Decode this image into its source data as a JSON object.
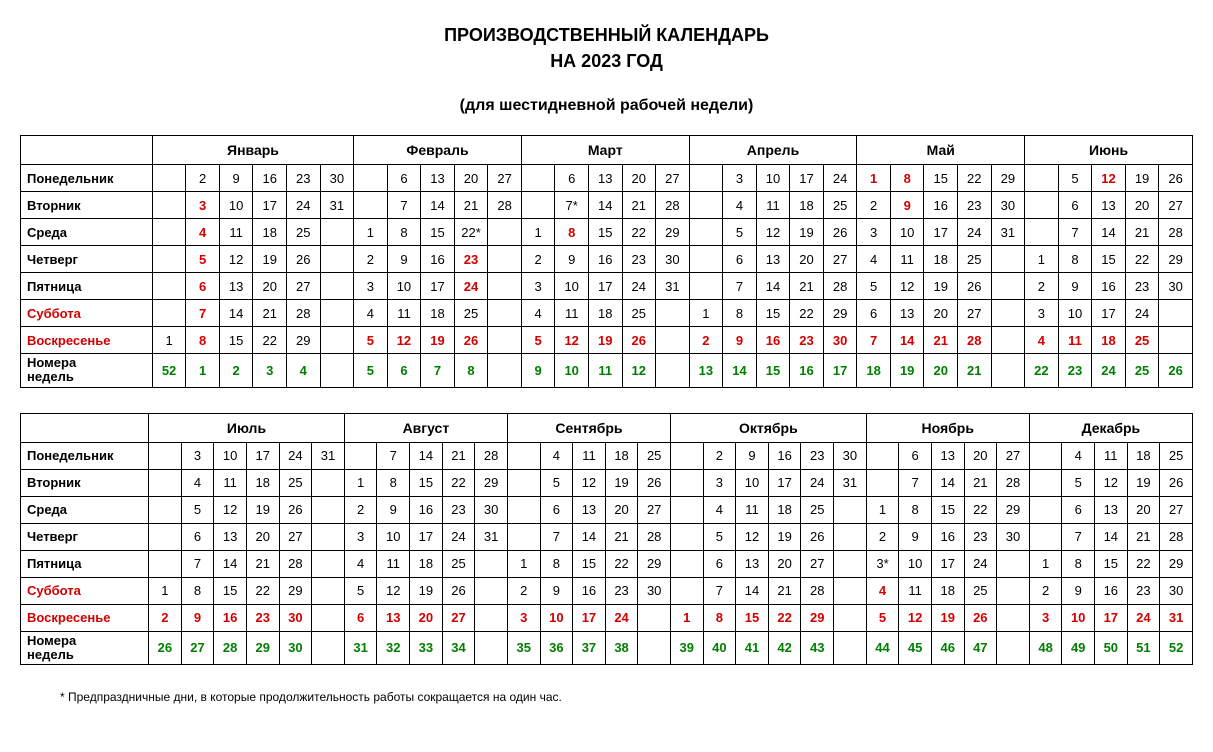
{
  "title1": "ПРОИЗВОДСТВЕННЫЙ КАЛЕНДАРЬ",
  "title2": "НА 2023 ГОД",
  "subtitle": "(для шестидневной рабочей недели)",
  "footnote": "* Предпраздничные дни, в которые продолжительность работы сокращается на один час.",
  "row_labels": [
    "Понедельник",
    "Вторник",
    "Среда",
    "Четверг",
    "Пятница",
    "Суббота",
    "Воскресенье"
  ],
  "weeks_label": "Номера недель",
  "red_rows": [
    5,
    6
  ],
  "half1": {
    "months": [
      {
        "name": "Январь",
        "cols": 6,
        "weeks": [
          "52",
          "1",
          "2",
          "3",
          "4",
          ""
        ],
        "days": [
          [
            "",
            "2",
            "9",
            "16",
            "23",
            "30"
          ],
          [
            "",
            "3",
            "10",
            "17",
            "24",
            "31"
          ],
          [
            "",
            "4",
            "11",
            "18",
            "25",
            ""
          ],
          [
            "",
            "5",
            "12",
            "19",
            "26",
            ""
          ],
          [
            "",
            "6",
            "13",
            "20",
            "27",
            ""
          ],
          [
            "",
            "7",
            "14",
            "21",
            "28",
            ""
          ],
          [
            "1",
            "8",
            "15",
            "22",
            "29",
            ""
          ]
        ],
        "red": [
          [],
          [
            1
          ],
          [
            1
          ],
          [
            1
          ],
          [
            1
          ],
          [
            1
          ],
          [
            1
          ],
          [
            0,
            1,
            2,
            3,
            4
          ]
        ]
      },
      {
        "name": "Февраль",
        "cols": 5,
        "weeks": [
          "5",
          "6",
          "7",
          "8",
          ""
        ],
        "days": [
          [
            "",
            "6",
            "13",
            "20",
            "27"
          ],
          [
            "",
            "7",
            "14",
            "21",
            "28"
          ],
          [
            "1",
            "8",
            "15",
            "22*",
            ""
          ],
          [
            "2",
            "9",
            "16",
            "23",
            ""
          ],
          [
            "3",
            "10",
            "17",
            "24",
            ""
          ],
          [
            "4",
            "11",
            "18",
            "25",
            ""
          ],
          [
            "5",
            "12",
            "19",
            "26",
            ""
          ]
        ],
        "red": [
          [],
          [],
          [],
          [
            3
          ],
          [
            3
          ],
          [],
          [
            0,
            1,
            2,
            3
          ]
        ]
      },
      {
        "name": "Март",
        "cols": 5,
        "weeks": [
          "9",
          "10",
          "11",
          "12",
          ""
        ],
        "days": [
          [
            "",
            "6",
            "13",
            "20",
            "27"
          ],
          [
            "",
            "7*",
            "14",
            "21",
            "28"
          ],
          [
            "1",
            "8",
            "15",
            "22",
            "29"
          ],
          [
            "2",
            "9",
            "16",
            "23",
            "30"
          ],
          [
            "3",
            "10",
            "17",
            "24",
            "31"
          ],
          [
            "4",
            "11",
            "18",
            "25",
            ""
          ],
          [
            "5",
            "12",
            "19",
            "26",
            ""
          ]
        ],
        "red": [
          [],
          [],
          [
            1
          ],
          [],
          [],
          [],
          [
            0,
            1,
            2,
            3
          ]
        ]
      },
      {
        "name": "Апрель",
        "cols": 5,
        "weeks": [
          "13",
          "14",
          "15",
          "16",
          "17"
        ],
        "days": [
          [
            "",
            "3",
            "10",
            "17",
            "24"
          ],
          [
            "",
            "4",
            "11",
            "18",
            "25"
          ],
          [
            "",
            "5",
            "12",
            "19",
            "26"
          ],
          [
            "",
            "6",
            "13",
            "20",
            "27"
          ],
          [
            "",
            "7",
            "14",
            "21",
            "28"
          ],
          [
            "1",
            "8",
            "15",
            "22",
            "29"
          ],
          [
            "2",
            "9",
            "16",
            "23",
            "30"
          ]
        ],
        "red": [
          [],
          [],
          [],
          [],
          [],
          [],
          [
            0,
            1,
            2,
            3,
            4
          ]
        ]
      },
      {
        "name": "Май",
        "cols": 5,
        "weeks": [
          "18",
          "19",
          "20",
          "21",
          ""
        ],
        "days": [
          [
            "1",
            "8",
            "15",
            "22",
            "29"
          ],
          [
            "2",
            "9",
            "16",
            "23",
            "30"
          ],
          [
            "3",
            "10",
            "17",
            "24",
            "31"
          ],
          [
            "4",
            "11",
            "18",
            "25",
            ""
          ],
          [
            "5",
            "12",
            "19",
            "26",
            ""
          ],
          [
            "6",
            "13",
            "20",
            "27",
            ""
          ],
          [
            "7",
            "14",
            "21",
            "28",
            ""
          ]
        ],
        "red": [
          [
            0,
            1
          ],
          [
            1
          ],
          [],
          [],
          [],
          [],
          [
            0,
            1,
            2,
            3
          ]
        ]
      },
      {
        "name": "Июнь",
        "cols": 5,
        "weeks": [
          "22",
          "23",
          "24",
          "25",
          "26"
        ],
        "days": [
          [
            "",
            "5",
            "12",
            "19",
            "26"
          ],
          [
            "",
            "6",
            "13",
            "20",
            "27"
          ],
          [
            "",
            "7",
            "14",
            "21",
            "28"
          ],
          [
            "1",
            "8",
            "15",
            "22",
            "29"
          ],
          [
            "2",
            "9",
            "16",
            "23",
            "30"
          ],
          [
            "3",
            "10",
            "17",
            "24",
            ""
          ],
          [
            "4",
            "11",
            "18",
            "25",
            ""
          ]
        ],
        "red": [
          [
            2
          ],
          [],
          [],
          [],
          [],
          [],
          [
            0,
            1,
            2,
            3
          ]
        ]
      }
    ]
  },
  "half2": {
    "months": [
      {
        "name": "Июль",
        "cols": 6,
        "weeks": [
          "26",
          "27",
          "28",
          "29",
          "30",
          ""
        ],
        "days": [
          [
            "",
            "3",
            "10",
            "17",
            "24",
            "31"
          ],
          [
            "",
            "4",
            "11",
            "18",
            "25",
            ""
          ],
          [
            "",
            "5",
            "12",
            "19",
            "26",
            ""
          ],
          [
            "",
            "6",
            "13",
            "20",
            "27",
            ""
          ],
          [
            "",
            "7",
            "14",
            "21",
            "28",
            ""
          ],
          [
            "1",
            "8",
            "15",
            "22",
            "29",
            ""
          ],
          [
            "2",
            "9",
            "16",
            "23",
            "30",
            ""
          ]
        ],
        "red": [
          [],
          [],
          [],
          [],
          [],
          [],
          [
            0,
            1,
            2,
            3,
            4
          ]
        ]
      },
      {
        "name": "Август",
        "cols": 5,
        "weeks": [
          "31",
          "32",
          "33",
          "34",
          ""
        ],
        "days": [
          [
            "",
            "7",
            "14",
            "21",
            "28"
          ],
          [
            "1",
            "8",
            "15",
            "22",
            "29"
          ],
          [
            "2",
            "9",
            "16",
            "23",
            "30"
          ],
          [
            "3",
            "10",
            "17",
            "24",
            "31"
          ],
          [
            "4",
            "11",
            "18",
            "25",
            ""
          ],
          [
            "5",
            "12",
            "19",
            "26",
            ""
          ],
          [
            "6",
            "13",
            "20",
            "27",
            ""
          ]
        ],
        "red": [
          [],
          [],
          [],
          [],
          [],
          [],
          [
            0,
            1,
            2,
            3
          ]
        ]
      },
      {
        "name": "Сентябрь",
        "cols": 5,
        "weeks": [
          "35",
          "36",
          "37",
          "38",
          ""
        ],
        "days": [
          [
            "",
            "4",
            "11",
            "18",
            "25"
          ],
          [
            "",
            "5",
            "12",
            "19",
            "26"
          ],
          [
            "",
            "6",
            "13",
            "20",
            "27"
          ],
          [
            "",
            "7",
            "14",
            "21",
            "28"
          ],
          [
            "1",
            "8",
            "15",
            "22",
            "29"
          ],
          [
            "2",
            "9",
            "16",
            "23",
            "30"
          ],
          [
            "3",
            "10",
            "17",
            "24",
            ""
          ]
        ],
        "red": [
          [],
          [],
          [],
          [],
          [],
          [],
          [
            0,
            1,
            2,
            3
          ]
        ]
      },
      {
        "name": "Октябрь",
        "cols": 6,
        "weeks": [
          "39",
          "40",
          "41",
          "42",
          "43",
          ""
        ],
        "days": [
          [
            "",
            "2",
            "9",
            "16",
            "23",
            "30"
          ],
          [
            "",
            "3",
            "10",
            "17",
            "24",
            "31"
          ],
          [
            "",
            "4",
            "11",
            "18",
            "25",
            ""
          ],
          [
            "",
            "5",
            "12",
            "19",
            "26",
            ""
          ],
          [
            "",
            "6",
            "13",
            "20",
            "27",
            ""
          ],
          [
            "",
            "7",
            "14",
            "21",
            "28",
            ""
          ],
          [
            "1",
            "8",
            "15",
            "22",
            "29",
            ""
          ]
        ],
        "red": [
          [],
          [],
          [],
          [],
          [],
          [],
          [
            0,
            1,
            2,
            3,
            4
          ]
        ]
      },
      {
        "name": "Ноябрь",
        "cols": 5,
        "weeks": [
          "44",
          "45",
          "46",
          "47",
          ""
        ],
        "days": [
          [
            "",
            "6",
            "13",
            "20",
            "27"
          ],
          [
            "",
            "7",
            "14",
            "21",
            "28"
          ],
          [
            "1",
            "8",
            "15",
            "22",
            "29"
          ],
          [
            "2",
            "9",
            "16",
            "23",
            "30"
          ],
          [
            "3*",
            "10",
            "17",
            "24",
            ""
          ],
          [
            "4",
            "11",
            "18",
            "25",
            ""
          ],
          [
            "5",
            "12",
            "19",
            "26",
            ""
          ]
        ],
        "red": [
          [],
          [],
          [],
          [],
          [],
          [
            0
          ],
          [
            0,
            1,
            2,
            3
          ]
        ]
      },
      {
        "name": "Декабрь",
        "cols": 5,
        "weeks": [
          "48",
          "49",
          "50",
          "51",
          "52"
        ],
        "days": [
          [
            "",
            "4",
            "11",
            "18",
            "25"
          ],
          [
            "",
            "5",
            "12",
            "19",
            "26"
          ],
          [
            "",
            "6",
            "13",
            "20",
            "27"
          ],
          [
            "",
            "7",
            "14",
            "21",
            "28"
          ],
          [
            "1",
            "8",
            "15",
            "22",
            "29"
          ],
          [
            "2",
            "9",
            "16",
            "23",
            "30"
          ],
          [
            "3",
            "10",
            "17",
            "24",
            "31"
          ]
        ],
        "red": [
          [],
          [],
          [],
          [],
          [],
          [],
          [
            0,
            1,
            2,
            3,
            4
          ]
        ]
      }
    ]
  }
}
